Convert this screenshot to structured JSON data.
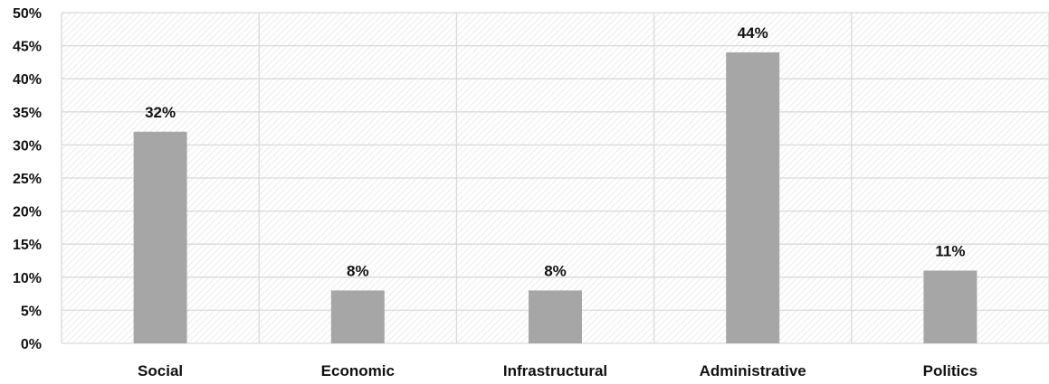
{
  "chart_data": {
    "type": "bar",
    "categories": [
      "Social",
      "Economic",
      "Infrastructural",
      "Administrative",
      "Politics"
    ],
    "values": [
      32,
      8,
      8,
      44,
      11
    ],
    "data_labels": [
      "32%",
      "8%",
      "8%",
      "44%",
      "11%"
    ],
    "y_ticks": [
      0,
      5,
      10,
      15,
      20,
      25,
      30,
      35,
      40,
      45,
      50
    ],
    "y_tick_labels": [
      "0%",
      "5%",
      "10%",
      "15%",
      "20%",
      "25%",
      "30%",
      "35%",
      "40%",
      "45%",
      "50%"
    ],
    "ylim": [
      0,
      50
    ],
    "title": "",
    "xlabel": "",
    "ylabel": "",
    "grid": true,
    "legend": "none",
    "colors": {
      "bar": "#a6a6a6",
      "grid": "#d9d9d9",
      "hatch": "#e3e3e3",
      "text": "#111111"
    }
  }
}
